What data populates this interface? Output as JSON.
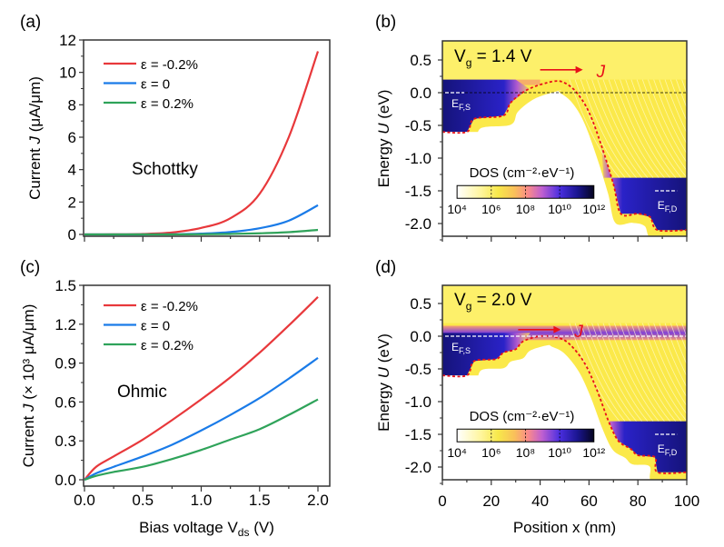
{
  "chart_data": [
    {
      "panel": "(a)",
      "type": "line",
      "title": "",
      "annotation": "Schottky",
      "xlabel": "",
      "ylabel": {
        "pre": "Current ",
        "var": "J",
        "post": " (μA/μm)"
      },
      "xlim": [
        0,
        2.0
      ],
      "ylim": [
        0,
        12
      ],
      "yticks": [
        "0",
        "2",
        "4",
        "6",
        "8",
        "10",
        "12"
      ],
      "x": [
        0,
        0.25,
        0.5,
        0.75,
        1.0,
        1.25,
        1.5,
        1.75,
        2.0
      ],
      "series": [
        {
          "name": "ε = -0.2%",
          "color": "#e8383b",
          "values": [
            0,
            0.005,
            0.03,
            0.12,
            0.4,
            1.0,
            2.5,
            6.0,
            11.3
          ]
        },
        {
          "name": "ε = 0",
          "color": "#1a7be8",
          "values": [
            0,
            0,
            0.002,
            0.01,
            0.05,
            0.15,
            0.38,
            0.85,
            1.8
          ]
        },
        {
          "name": "ε =  0.2%",
          "color": "#2fa35a",
          "values": [
            0,
            0,
            0,
            0.002,
            0.01,
            0.03,
            0.07,
            0.14,
            0.28
          ]
        }
      ]
    },
    {
      "panel": "(b)",
      "type": "heatmap",
      "gate_label": {
        "main": "V",
        "sub": "g",
        "rest": " = 1.4 V"
      },
      "current_label": "J",
      "ylabel": {
        "pre": "Energy ",
        "var": "U",
        "post": " (eV)"
      },
      "xlim": [
        0,
        100
      ],
      "ylim": [
        -2.2,
        0.8
      ],
      "yticks": [
        "0.5",
        "0.0",
        "-0.5",
        "-1.0",
        "-1.5",
        "-2.0"
      ],
      "fermi_source": {
        "main": "E",
        "sub": "F,S",
        "energy": 0.0
      },
      "fermi_drain": {
        "main": "E",
        "sub": "F,D",
        "energy": -1.5
      },
      "colorbar": {
        "label": "DOS (cm⁻²·eV⁻¹)",
        "ticks": [
          "10⁴",
          "10⁶",
          "10⁸",
          "10¹⁰",
          "10¹²"
        ]
      },
      "band_edge": {
        "x": [
          0,
          10,
          13,
          25,
          28,
          35,
          45,
          50,
          55,
          60,
          65,
          70,
          73,
          80,
          85,
          88,
          100
        ],
        "y": [
          -0.6,
          -0.6,
          -0.4,
          -0.35,
          -0.15,
          0.05,
          0.17,
          0.15,
          0.0,
          -0.3,
          -0.8,
          -1.4,
          -1.85,
          -1.85,
          -1.9,
          -2.1,
          -2.1
        ]
      }
    },
    {
      "panel": "(c)",
      "type": "line",
      "annotation": "Ohmic",
      "xlabel": {
        "main": "Bias voltage V",
        "sub": "ds",
        "post": " (V)"
      },
      "ylabel": {
        "pre": "Current ",
        "var": "J",
        "post": " (× 10³ μA/μm)"
      },
      "xlim": [
        0,
        2.0
      ],
      "ylim": [
        0,
        1.5
      ],
      "xticks": [
        "0.0",
        "0.5",
        "1.0",
        "1.5",
        "2.0"
      ],
      "yticks": [
        "0.0",
        "0.3",
        "0.6",
        "0.9",
        "1.2",
        "1.5"
      ],
      "x": [
        0,
        0.1,
        0.25,
        0.5,
        0.75,
        1.0,
        1.25,
        1.5,
        1.75,
        2.0
      ],
      "series": [
        {
          "name": "ε = -0.2%",
          "color": "#e8383b",
          "values": [
            0,
            0.1,
            0.18,
            0.31,
            0.46,
            0.62,
            0.79,
            0.98,
            1.19,
            1.41
          ]
        },
        {
          "name": "ε = 0",
          "color": "#1a7be8",
          "values": [
            0,
            0.05,
            0.1,
            0.18,
            0.27,
            0.38,
            0.5,
            0.63,
            0.78,
            0.94
          ]
        },
        {
          "name": "ε =  0.2%",
          "color": "#2fa35a",
          "values": [
            0,
            0.03,
            0.06,
            0.1,
            0.16,
            0.23,
            0.31,
            0.39,
            0.5,
            0.62
          ]
        }
      ]
    },
    {
      "panel": "(d)",
      "type": "heatmap",
      "gate_label": {
        "main": "V",
        "sub": "g",
        "rest": " = 2.0 V"
      },
      "current_label": "J",
      "xlabel": "Position x (nm)",
      "ylabel": {
        "pre": "Energy ",
        "var": "U",
        "post": " (eV)"
      },
      "xlim": [
        0,
        100
      ],
      "ylim": [
        -2.2,
        0.8
      ],
      "xticks": [
        "0",
        "20",
        "40",
        "60",
        "80",
        "100"
      ],
      "yticks": [
        "0.5",
        "0.0",
        "-0.5",
        "-1.0",
        "-1.5",
        "-2.0"
      ],
      "fermi_source": {
        "main": "E",
        "sub": "F,S",
        "energy": 0.0
      },
      "fermi_drain": {
        "main": "E",
        "sub": "F,D",
        "energy": -1.5
      },
      "colorbar": {
        "label": "DOS (cm⁻²·eV⁻¹)",
        "ticks": [
          "10⁴",
          "10⁶",
          "10⁸",
          "10¹⁰",
          "10¹²"
        ]
      },
      "band_edge": {
        "x": [
          0,
          10,
          13,
          22,
          25,
          30,
          33,
          40,
          47,
          52,
          58,
          63,
          68,
          72,
          77,
          80,
          87,
          88,
          100
        ],
        "y": [
          -0.6,
          -0.6,
          -0.38,
          -0.35,
          -0.25,
          -0.2,
          -0.08,
          0.0,
          -0.02,
          -0.12,
          -0.4,
          -0.8,
          -1.3,
          -1.6,
          -1.72,
          -1.82,
          -1.85,
          -2.08,
          -2.08
        ]
      }
    }
  ]
}
